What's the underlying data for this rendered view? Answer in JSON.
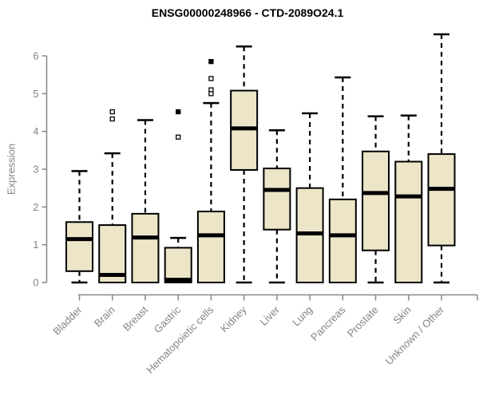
{
  "chart_data": {
    "type": "boxplot",
    "title": "ENSG00000248966 - CTD-2089O24.1",
    "xlabel": "",
    "ylabel": "Expression",
    "ylim": [
      0,
      6.6
    ],
    "yticks": [
      0,
      1,
      2,
      3,
      4,
      5,
      6
    ],
    "grid": false,
    "whisker_style": "dashed",
    "legend": "none",
    "categories": [
      "Bladder",
      "Brain",
      "Breast",
      "Gastric",
      "Hematopoietic cells",
      "Kidney",
      "Liver",
      "Lung",
      "Pancreas",
      "Prostate",
      "Skin",
      "Unknown / Other"
    ],
    "series": [
      {
        "name": "Bladder",
        "min": 0,
        "q1": 0.3,
        "median": 1.15,
        "q3": 1.6,
        "max": 2.95,
        "outliers": []
      },
      {
        "name": "Brain",
        "min": 0,
        "q1": 0.0,
        "median": 0.2,
        "q3": 1.52,
        "max": 3.42,
        "outliers": [
          {
            "value": 4.52,
            "filled": false
          },
          {
            "value": 4.33,
            "filled": false
          }
        ]
      },
      {
        "name": "Breast",
        "min": 0,
        "q1": 0.0,
        "median": 1.19,
        "q3": 1.82,
        "max": 4.3,
        "outliers": []
      },
      {
        "name": "Gastric",
        "min": 0,
        "q1": 0.0,
        "median": 0.07,
        "q3": 0.92,
        "max": 1.18,
        "outliers": [
          {
            "value": 4.52,
            "filled": true
          },
          {
            "value": 3.85,
            "filled": false
          }
        ]
      },
      {
        "name": "Hematopoietic cells",
        "min": 0,
        "q1": 0.0,
        "median": 1.25,
        "q3": 1.88,
        "max": 4.75,
        "outliers": [
          {
            "value": 5.85,
            "filled": true
          },
          {
            "value": 5.4,
            "filled": false
          },
          {
            "value": 5.1,
            "filled": false
          },
          {
            "value": 5.0,
            "filled": false
          }
        ]
      },
      {
        "name": "Kidney",
        "min": 0,
        "q1": 2.98,
        "median": 4.08,
        "q3": 5.08,
        "max": 6.25,
        "outliers": []
      },
      {
        "name": "Liver",
        "min": 0,
        "q1": 1.4,
        "median": 2.45,
        "q3": 3.02,
        "max": 4.03,
        "outliers": []
      },
      {
        "name": "Lung",
        "min": 0,
        "q1": 0.0,
        "median": 1.3,
        "q3": 2.5,
        "max": 4.48,
        "outliers": []
      },
      {
        "name": "Pancreas",
        "min": 0,
        "q1": 0.0,
        "median": 1.25,
        "q3": 2.2,
        "max": 5.43,
        "outliers": []
      },
      {
        "name": "Prostate",
        "min": 0,
        "q1": 0.85,
        "median": 2.37,
        "q3": 3.47,
        "max": 4.4,
        "outliers": []
      },
      {
        "name": "Skin",
        "min": 0,
        "q1": 0.0,
        "median": 2.28,
        "q3": 3.2,
        "max": 4.42,
        "outliers": []
      },
      {
        "name": "Unknown / Other",
        "min": 0,
        "q1": 0.98,
        "median": 2.48,
        "q3": 3.4,
        "max": 6.57,
        "outliers": []
      }
    ],
    "colors": {
      "box_fill": "#ece5c8",
      "box_stroke": "#000000",
      "median": "#000000",
      "whisker": "#000000",
      "axis": "#888888",
      "tick_label": "#848484",
      "title": "#000000"
    }
  }
}
